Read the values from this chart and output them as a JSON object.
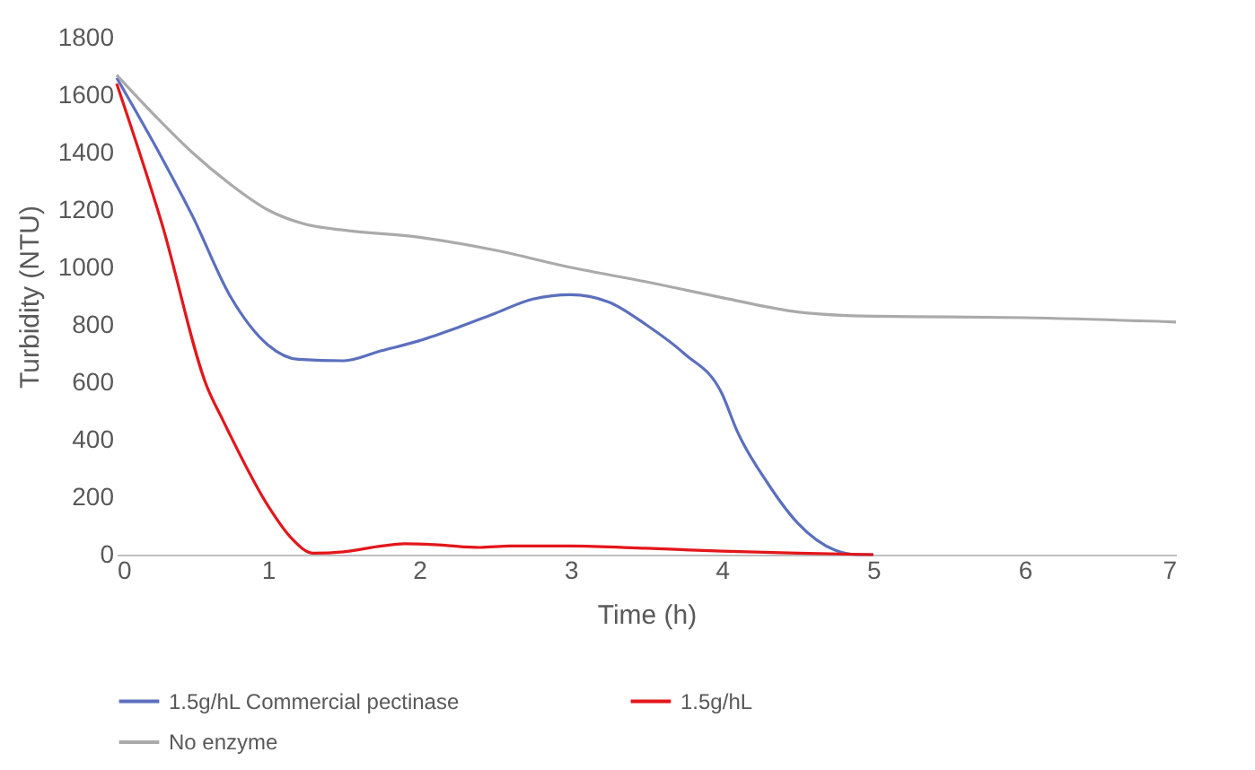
{
  "chart_data": {
    "type": "line",
    "xlabel": "Time (h)",
    "ylabel": "Turbidity (NTU)",
    "xlim": [
      0,
      7
    ],
    "xticks": [
      0,
      1,
      2,
      3,
      4,
      5,
      6,
      7
    ],
    "ylim": [
      0,
      1800
    ],
    "yticks": [
      0,
      200,
      400,
      600,
      800,
      1000,
      1200,
      1400,
      1600,
      1800
    ],
    "grid": false,
    "legend": "bottom",
    "marker": "none",
    "line_style": "solid",
    "series": [
      {
        "name": "1.5g/hL Commercial pectinase",
        "color": "#5b6fbd",
        "x": [
          0,
          0.3,
          0.5,
          0.75,
          1,
          1.2,
          1.5,
          1.75,
          2,
          2.25,
          2.5,
          2.75,
          3,
          3.25,
          3.5,
          3.75,
          4,
          4.1,
          4.3,
          4.5,
          4.75,
          4.9,
          5
        ],
        "values": [
          1660,
          1380,
          1180,
          900,
          730,
          680,
          675,
          710,
          745,
          790,
          840,
          890,
          905,
          880,
          800,
          700,
          560,
          430,
          250,
          110,
          15,
          0,
          0
        ]
      },
      {
        "name": "1.5g/hL",
        "color": "#e3161b",
        "x": [
          0,
          0.3,
          0.6,
          0.7,
          1,
          1.15,
          1.3,
          1.5,
          1.75,
          1.9,
          2.1,
          2.4,
          2.6,
          3,
          3.5,
          4,
          4.5,
          5
        ],
        "values": [
          1640,
          1150,
          580,
          470,
          170,
          60,
          5,
          10,
          30,
          38,
          35,
          25,
          30,
          30,
          22,
          12,
          5,
          0
        ]
      },
      {
        "name": "No enzyme",
        "color": "#aaaaaa",
        "x": [
          0,
          0.25,
          0.5,
          0.75,
          1,
          1.25,
          1.5,
          2,
          2.5,
          3,
          3.5,
          4,
          4.5,
          5,
          6,
          7
        ],
        "values": [
          1670,
          1530,
          1400,
          1290,
          1200,
          1150,
          1130,
          1105,
          1060,
          1000,
          950,
          895,
          845,
          830,
          825,
          810
        ]
      }
    ]
  }
}
